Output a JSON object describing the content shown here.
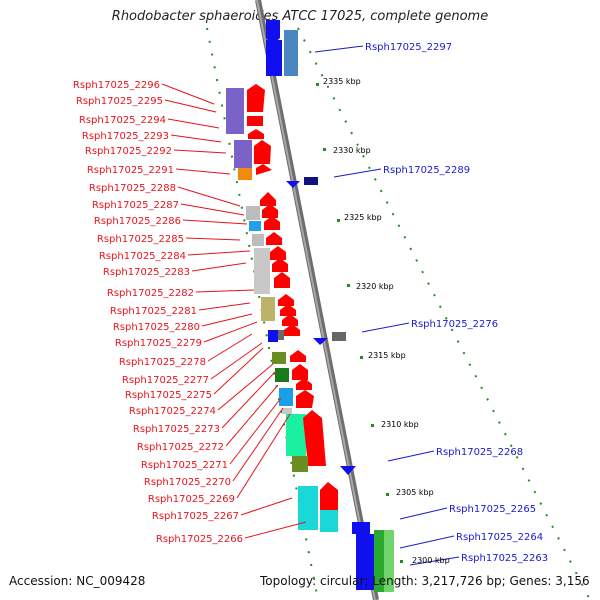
{
  "title": "Rhodobacter sphaeroides ATCC 17025, complete genome",
  "accession": "Accession: NC_009428",
  "summary": "Topology: circular; Length: 3,217,726 bp; Genes: 3,156",
  "colors": {
    "left_label": "#e8141b",
    "right_label": "#1a1ad0",
    "forward_gene": "#ff0000",
    "backbone": "#7c7c7c",
    "tick_dot": "#1f8f1f"
  },
  "ticks": [
    {
      "label": "2335 kbp"
    },
    {
      "label": "2330 kbp"
    },
    {
      "label": "2325 kbp"
    },
    {
      "label": "2320 kbp"
    },
    {
      "label": "2315 kbp"
    },
    {
      "label": "2310 kbp"
    },
    {
      "label": "2305 kbp"
    },
    {
      "label": "2300 kbp"
    }
  ],
  "left_labels": [
    "Rsph17025_2296",
    "Rsph17025_2295",
    "Rsph17025_2294",
    "Rsph17025_2293",
    "Rsph17025_2292",
    "Rsph17025_2291",
    "Rsph17025_2288",
    "Rsph17025_2287",
    "Rsph17025_2286",
    "Rsph17025_2285",
    "Rsph17025_2284",
    "Rsph17025_2283",
    "Rsph17025_2282",
    "Rsph17025_2281",
    "Rsph17025_2280",
    "Rsph17025_2279",
    "Rsph17025_2278",
    "Rsph17025_2277",
    "Rsph17025_2275",
    "Rsph17025_2274",
    "Rsph17025_2273",
    "Rsph17025_2272",
    "Rsph17025_2271",
    "Rsph17025_2270",
    "Rsph17025_2269",
    "Rsph17025_2267",
    "Rsph17025_2266"
  ],
  "right_labels": [
    "Rsph17025_2297",
    "Rsph17025_2289",
    "Rsph17025_2276",
    "Rsph17025_2268",
    "Rsph17025_2265",
    "Rsph17025_2264",
    "Rsph17025_2263"
  ]
}
